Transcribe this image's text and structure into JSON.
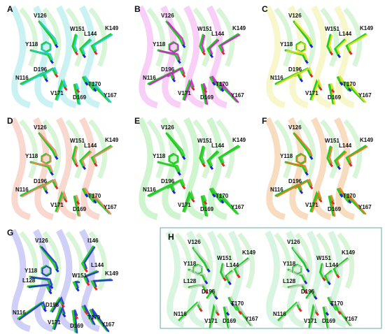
{
  "panels": [
    {
      "letter": "A",
      "labels": [
        "V126",
        "W151",
        "L144",
        "K149",
        "Y118",
        "D196",
        "N116",
        "V171",
        "T170",
        "D169",
        "Y167"
      ]
    },
    {
      "letter": "B",
      "labels": [
        "V126",
        "W151",
        "L144",
        "K149",
        "Y118",
        "D196",
        "N116",
        "V171",
        "T170",
        "D169",
        "Y167"
      ]
    },
    {
      "letter": "C",
      "labels": [
        "V126",
        "W151",
        "L144",
        "K149",
        "Y118",
        "D196",
        "N116",
        "V171",
        "T170",
        "D169",
        "Y167"
      ]
    },
    {
      "letter": "D",
      "labels": [
        "V126",
        "W151",
        "L144",
        "K149",
        "Y118",
        "D196",
        "N116",
        "V171",
        "T170",
        "D169",
        "Y167"
      ]
    },
    {
      "letter": "E",
      "labels": [
        "V126",
        "W151",
        "L144",
        "K149",
        "Y118",
        "D196",
        "N116",
        "V171",
        "T170",
        "D169",
        "Y167"
      ]
    },
    {
      "letter": "F",
      "labels": [
        "V126",
        "W151",
        "L144",
        "K149",
        "Y118",
        "D196",
        "N116",
        "V171",
        "T170",
        "D169",
        "Y167"
      ]
    },
    {
      "letter": "G",
      "labels": [
        "V126",
        "I146",
        "Y118",
        "L144",
        "W151",
        "K149",
        "L128",
        "D196",
        "N116",
        "T170",
        "V171",
        "D169",
        "Y167"
      ]
    },
    {
      "letter": "H",
      "views": [
        [
          "V126",
          "W151",
          "L144",
          "K149",
          "Y118",
          "L128",
          "D196",
          "N116",
          "T170",
          "V171",
          "D169",
          "Y167"
        ],
        [
          "V126",
          "W151",
          "L144",
          "K149",
          "Y118",
          "L128",
          "D196",
          "N116",
          "T170",
          "V171",
          "D169",
          "Y167"
        ]
      ]
    }
  ]
}
